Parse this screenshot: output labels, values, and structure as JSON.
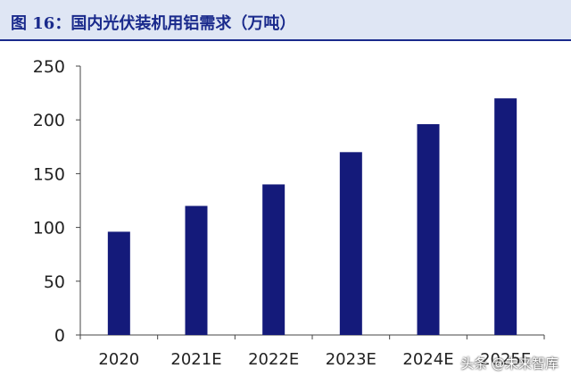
{
  "header": {
    "title": "图 16：国内光伏装机用铝需求（万吨）"
  },
  "watermark": "头条 @未来智库",
  "colors": {
    "bar": "#141a7a",
    "axis": "#444444",
    "title": "#1a2a8c",
    "header_bg": "#dfe6f4"
  },
  "chart_data": {
    "type": "bar",
    "title": "图 16：国内光伏装机用铝需求（万吨）",
    "xlabel": "",
    "ylabel": "",
    "categories": [
      "2020",
      "2021E",
      "2022E",
      "2023E",
      "2024E",
      "2025E"
    ],
    "values": [
      96,
      120,
      140,
      170,
      196,
      220
    ],
    "ylim": [
      0,
      250
    ],
    "yticks": [
      0,
      50,
      100,
      150,
      200,
      250
    ],
    "grid": false,
    "legend": "none"
  }
}
